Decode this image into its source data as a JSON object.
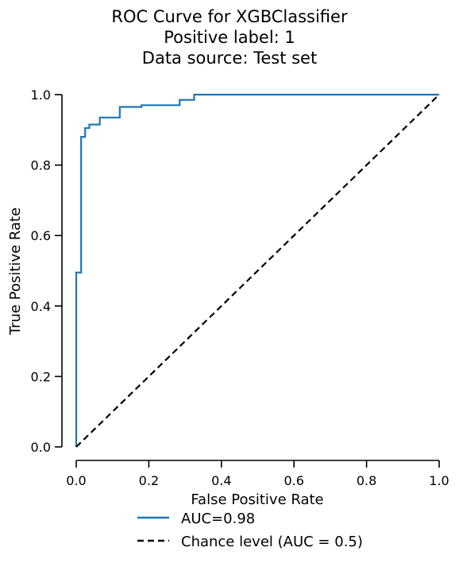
{
  "chart_data": {
    "type": "line",
    "title": [
      "ROC Curve for XGBClassifier",
      "Positive label: 1",
      "Data source: Test set"
    ],
    "xlabel": "False Positive Rate",
    "ylabel": "True Positive Rate",
    "xlim": [
      0,
      1
    ],
    "ylim": [
      0,
      1
    ],
    "xticks": [
      "0.0",
      "0.2",
      "0.4",
      "0.6",
      "0.8",
      "1.0"
    ],
    "yticks": [
      "0.0",
      "0.2",
      "0.4",
      "0.6",
      "0.8",
      "1.0"
    ],
    "grid": false,
    "legend_position": "below",
    "series": [
      {
        "name": "AUC=0.98",
        "color": "#1f77b4",
        "style": "solid",
        "x": [
          0.0,
          0.0,
          0.0,
          0.0135,
          0.0135,
          0.0135,
          0.0245,
          0.0245,
          0.036,
          0.036,
          0.055,
          0.055,
          0.065,
          0.065,
          0.12,
          0.12,
          0.18,
          0.18,
          0.285,
          0.285,
          0.325,
          0.325,
          1.0
        ],
        "y": [
          0.0,
          0.0,
          0.495,
          0.495,
          0.88,
          0.88,
          0.88,
          0.905,
          0.905,
          0.915,
          0.915,
          0.915,
          0.915,
          0.935,
          0.935,
          0.965,
          0.965,
          0.97,
          0.97,
          0.985,
          0.985,
          1.0,
          1.0
        ]
      },
      {
        "name": "Chance level (AUC = 0.5)",
        "color": "#000000",
        "style": "dashed",
        "x": [
          0,
          1
        ],
        "y": [
          0,
          1
        ]
      }
    ]
  }
}
